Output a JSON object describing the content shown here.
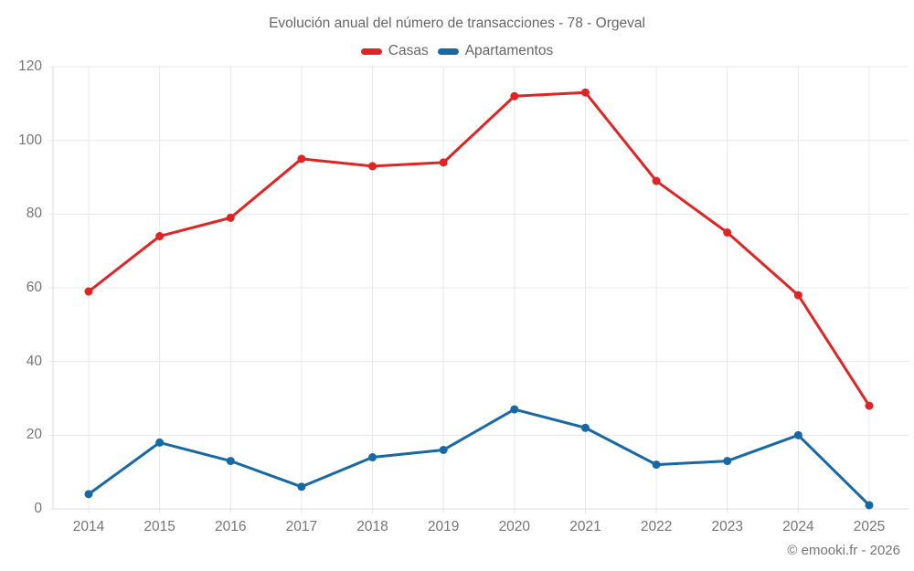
{
  "footer_text": "© emooki.fr - 2026",
  "colors": {
    "casas": "#e02424",
    "apartamentos": "#1769a5",
    "gridline": "#e8e8e8",
    "axis_line": "#dcdcdc",
    "title_text": "#666666",
    "tick_text": "#757575"
  },
  "chart_data": {
    "type": "line",
    "title": "Evolución anual del número de transacciones - 78 - Orgeval",
    "categories": [
      "2014",
      "2015",
      "2016",
      "2017",
      "2018",
      "2019",
      "2020",
      "2021",
      "2022",
      "2023",
      "2024",
      "2025"
    ],
    "series": [
      {
        "name": "Casas",
        "color": "#e02424",
        "values": [
          59,
          74,
          79,
          95,
          93,
          94,
          112,
          113,
          89,
          75,
          58,
          28
        ]
      },
      {
        "name": "Apartamentos",
        "color": "#1769a5",
        "values": [
          4,
          18,
          13,
          6,
          14,
          16,
          27,
          22,
          12,
          13,
          20,
          1
        ]
      }
    ],
    "xlabel": "",
    "ylabel": "",
    "ylim": [
      0,
      120
    ],
    "yticks": [
      0,
      20,
      40,
      60,
      80,
      100,
      120
    ],
    "grid": true,
    "legend_position": "top",
    "marker": "circle"
  }
}
